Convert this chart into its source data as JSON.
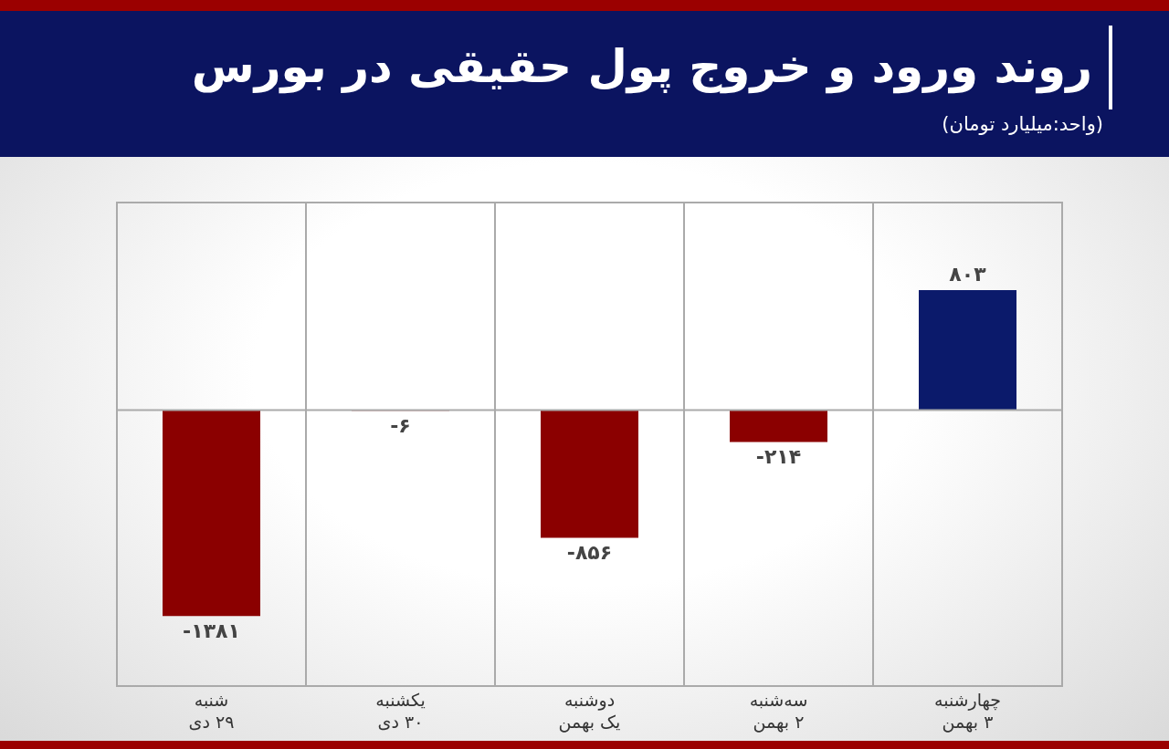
{
  "chart_data": {
    "type": "bar",
    "title": "روند ورود و خروج پول حقیقی در بورس",
    "subtitle": "(واحد:میلیارد تومان)",
    "categories": [
      "شنبه\n۲۹ دی",
      "یکشنبه\n۳۰ دی",
      "دوشنبه\nیک بهمن",
      "سه‌شنبه\n۲ بهمن",
      "چهارشنبه\n۳ بهمن"
    ],
    "values": [
      -1381,
      -6,
      -856,
      -214,
      803
    ],
    "colors": [
      "#8b0000",
      "#8b0000",
      "#8b0000",
      "#8b0000",
      "#0b1a6b"
    ],
    "value_labels": [
      "-۱۳۸۱",
      "-۶",
      "-۸۵۶",
      "-۲۱۴",
      "۸۰۳"
    ],
    "ylim": [
      -1850,
      1390
    ],
    "tick_labels": "x",
    "grid": "x"
  }
}
